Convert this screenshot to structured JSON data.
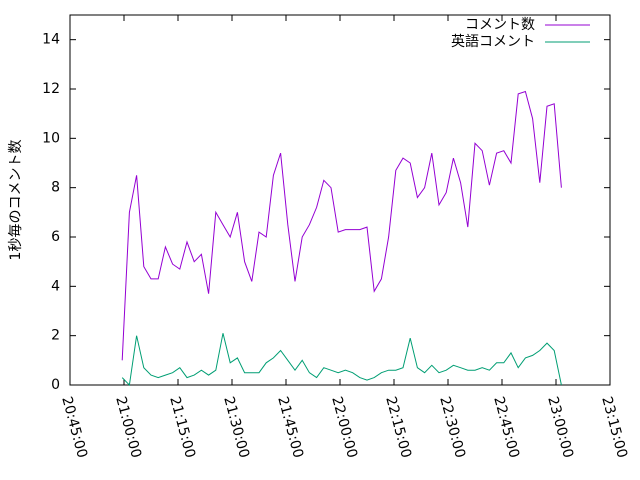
{
  "chart_data": {
    "type": "line",
    "ylabel": "1秒毎のコメント数",
    "x": [
      "20:59:30",
      "21:01:30",
      "21:03:30",
      "21:05:30",
      "21:07:30",
      "21:09:30",
      "21:11:30",
      "21:13:30",
      "21:15:30",
      "21:17:30",
      "21:19:30",
      "21:21:30",
      "21:23:30",
      "21:25:30",
      "21:27:30",
      "21:29:30",
      "21:31:30",
      "21:33:30",
      "21:35:30",
      "21:37:30",
      "21:39:30",
      "21:41:30",
      "21:43:30",
      "21:45:30",
      "21:47:30",
      "21:49:30",
      "21:51:30",
      "21:53:30",
      "21:55:30",
      "21:57:30",
      "21:59:30",
      "22:01:30",
      "22:03:30",
      "22:05:30",
      "22:07:30",
      "22:09:30",
      "22:11:30",
      "22:13:30",
      "22:15:30",
      "22:17:30",
      "22:19:30",
      "22:21:30",
      "22:23:30",
      "22:25:30",
      "22:27:30",
      "22:29:30",
      "22:31:30",
      "22:33:30",
      "22:35:30",
      "22:37:30",
      "22:39:30",
      "22:41:30",
      "22:43:30",
      "22:45:30",
      "22:47:30",
      "22:49:30",
      "22:51:30",
      "22:53:30",
      "22:55:30",
      "22:57:30",
      "22:59:30",
      "23:01:30"
    ],
    "series": [
      {
        "name": "コメント数",
        "color": "#9400d3",
        "values": [
          1.0,
          7.0,
          8.5,
          4.8,
          4.3,
          4.3,
          5.6,
          4.9,
          4.7,
          5.8,
          5.0,
          5.3,
          3.7,
          7.0,
          6.5,
          6.0,
          7.0,
          5.0,
          4.2,
          6.2,
          6.0,
          8.5,
          9.4,
          6.5,
          4.2,
          6.0,
          6.5,
          7.2,
          8.3,
          8.0,
          6.2,
          6.3,
          6.3,
          6.3,
          6.4,
          3.8,
          4.3,
          6.0,
          8.7,
          9.2,
          9.0,
          7.6,
          8.0,
          9.4,
          7.3,
          7.8,
          9.2,
          8.2,
          6.4,
          9.8,
          9.5,
          8.1,
          9.4,
          9.5,
          9.0,
          11.8,
          11.9,
          10.8,
          8.2,
          11.3,
          11.4,
          8.0
        ]
      },
      {
        "name": "英語コメント",
        "color": "#009e73",
        "values": [
          0.3,
          0.0,
          2.0,
          0.7,
          0.4,
          0.3,
          0.4,
          0.5,
          0.7,
          0.3,
          0.4,
          0.6,
          0.4,
          0.6,
          2.1,
          0.9,
          1.1,
          0.5,
          0.5,
          0.5,
          0.9,
          1.1,
          1.4,
          1.0,
          0.6,
          1.0,
          0.5,
          0.3,
          0.7,
          0.6,
          0.5,
          0.6,
          0.5,
          0.3,
          0.2,
          0.3,
          0.5,
          0.6,
          0.6,
          0.7,
          1.9,
          0.7,
          0.5,
          0.8,
          0.5,
          0.6,
          0.8,
          0.7,
          0.6,
          0.6,
          0.7,
          0.6,
          0.9,
          0.9,
          1.3,
          0.7,
          1.1,
          1.2,
          1.4,
          1.7,
          1.4,
          0.0
        ]
      }
    ],
    "xlim": [
      "20:45:00",
      "23:15:00"
    ],
    "xticks": [
      "20:45:00",
      "21:00:00",
      "21:15:00",
      "21:30:00",
      "21:45:00",
      "22:00:00",
      "22:15:00",
      "22:30:00",
      "22:45:00",
      "23:00:00",
      "23:15:00"
    ],
    "ylim": [
      0,
      15
    ],
    "yticks": [
      0,
      2,
      4,
      6,
      8,
      10,
      12,
      14
    ],
    "grid": false,
    "legend": "top right"
  }
}
